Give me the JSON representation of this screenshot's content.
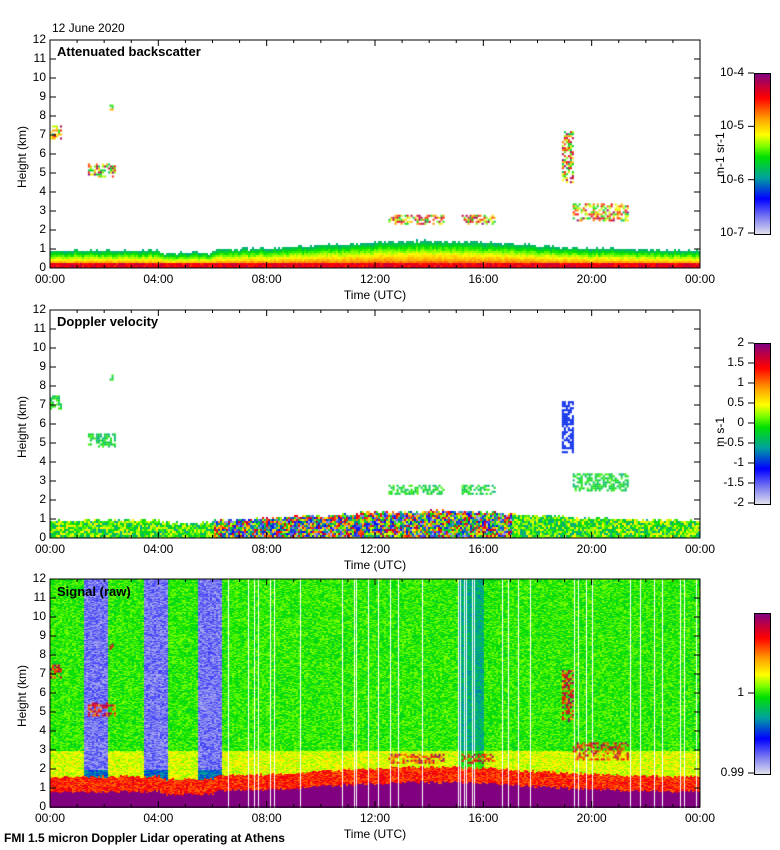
{
  "date_label": "12 June 2020",
  "footer": "FMI 1.5 micron Doppler Lidar operating at Athens",
  "colors": {
    "colormap": [
      "#e0e0ee",
      "#0000ff",
      "#00e000",
      "#ffff00",
      "#ff0000",
      "#800080"
    ]
  },
  "chart_data": [
    {
      "type": "heatmap",
      "title": "Attenuated backscatter",
      "xlabel": "Time (UTC)",
      "ylabel": "Height (km)",
      "xticks": [
        "00:00",
        "04:00",
        "08:00",
        "12:00",
        "16:00",
        "20:00",
        "00:00"
      ],
      "yticks": [
        "0",
        "1",
        "2",
        "3",
        "4",
        "5",
        "6",
        "7",
        "8",
        "9",
        "10",
        "11",
        "12"
      ],
      "ylim": [
        0,
        12
      ],
      "xlim_hours": [
        0,
        24
      ],
      "colorbar": {
        "label": "m-1 sr-1",
        "scale": "log",
        "ticks": [
          "10-4",
          "10-5",
          "10-6",
          "10-7"
        ],
        "range": [
          1e-07,
          0.0001
        ]
      },
      "features": [
        {
          "t": [
            0,
            0.4
          ],
          "h": [
            6.8,
            7.5
          ]
        },
        {
          "t": [
            1.4,
            2.4
          ],
          "h": [
            4.8,
            5.5
          ]
        },
        {
          "t": [
            2.2,
            2.3
          ],
          "h": [
            8.3,
            8.6
          ]
        },
        {
          "t": [
            12.5,
            14.5
          ],
          "h": [
            2.3,
            2.8
          ]
        },
        {
          "t": [
            15.2,
            16.4
          ],
          "h": [
            2.3,
            2.8
          ]
        },
        {
          "t": [
            18.9,
            19.3
          ],
          "h": [
            4.5,
            7.2
          ]
        },
        {
          "t": [
            19.3,
            21.3
          ],
          "h": [
            2.5,
            3.4
          ]
        }
      ]
    },
    {
      "type": "heatmap",
      "title": "Doppler velocity",
      "xlabel": "Time (UTC)",
      "ylabel": "Height (km)",
      "xticks": [
        "00:00",
        "04:00",
        "08:00",
        "12:00",
        "16:00",
        "20:00",
        "00:00"
      ],
      "yticks": [
        "0",
        "1",
        "2",
        "3",
        "4",
        "5",
        "6",
        "7",
        "8",
        "9",
        "10",
        "11",
        "12"
      ],
      "ylim": [
        0,
        12
      ],
      "colorbar": {
        "label": "m s-1",
        "ticks": [
          "2",
          "1.5",
          "1",
          "0.5",
          "0",
          "-0.5",
          "-1",
          "-1.5",
          "-2"
        ],
        "range": [
          -2,
          2
        ]
      }
    },
    {
      "type": "heatmap",
      "title": "Signal (raw)",
      "xlabel": "Time (UTC)",
      "ylabel": "Height (km)",
      "xticks": [
        "00:00",
        "04:00",
        "08:00",
        "12:00",
        "16:00",
        "20:00",
        "00:00"
      ],
      "yticks": [
        "0",
        "1",
        "2",
        "3",
        "4",
        "5",
        "6",
        "7",
        "8",
        "9",
        "10",
        "11",
        "12"
      ],
      "ylim": [
        0,
        12
      ],
      "colorbar": {
        "label": "",
        "ticks": [
          "1",
          "0.99"
        ],
        "range": [
          0.99,
          1.01
        ]
      }
    }
  ]
}
